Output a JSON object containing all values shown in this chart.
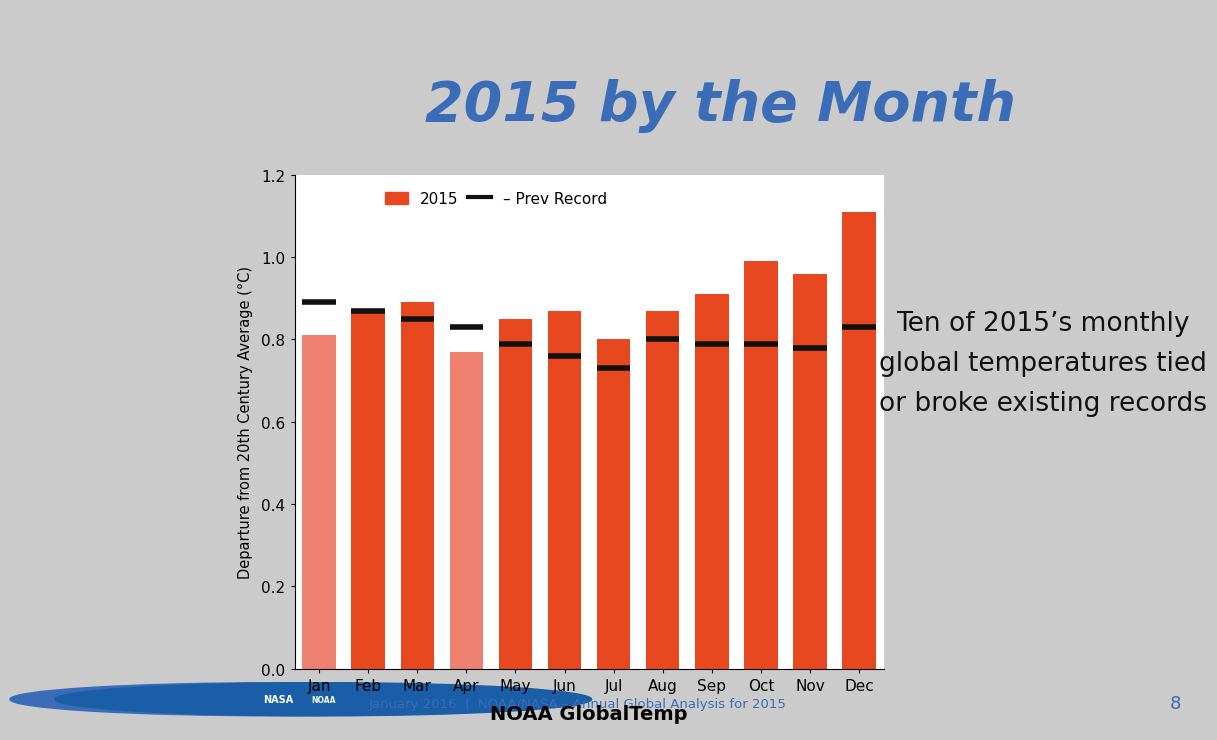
{
  "months": [
    "Jan",
    "Feb",
    "Mar",
    "Apr",
    "May",
    "Jun",
    "Jul",
    "Aug",
    "Sep",
    "Oct",
    "Nov",
    "Dec"
  ],
  "values_2015": [
    0.81,
    0.87,
    0.89,
    0.77,
    0.85,
    0.87,
    0.8,
    0.87,
    0.91,
    0.99,
    0.96,
    1.11
  ],
  "prev_records": [
    0.89,
    0.87,
    0.85,
    0.83,
    0.79,
    0.76,
    0.73,
    0.8,
    0.79,
    0.79,
    0.78,
    0.83
  ],
  "bar_colors": [
    "#F08070",
    "#E84820",
    "#E84820",
    "#F08070",
    "#E84820",
    "#E84820",
    "#E84820",
    "#E84820",
    "#E84820",
    "#E84820",
    "#E84820",
    "#E84820"
  ],
  "record_color": "#111111",
  "bar_color_main": "#E84820",
  "bar_color_light": "#F08070",
  "title": "2015 by the Month",
  "title_color": "#3B6CB7",
  "header_bg": "#3B6CB7",
  "header_stripe_bg": "#7DA6D8",
  "title_area_bg": "#CBCBCB",
  "chart_bg": "#FFFFFF",
  "right_panel_bg": "#DCDCDC",
  "ylabel": "Departure from 20th Century Average (°C)",
  "xlabel": "NOAA GlobalTemp",
  "ylim": [
    0.0,
    1.2
  ],
  "yticks": [
    0.0,
    0.2,
    0.4,
    0.6,
    0.8,
    1.0,
    1.2
  ],
  "annotation_text": "Ten of 2015’s monthly\nglobal temperatures tied\nor broke existing records",
  "annotation_color": "#111111",
  "footer_text": "January 2016  |  NOAA/NASA – Annual Global Analysis for 2015",
  "footer_page": "8",
  "footer_color": "#3B6CB7"
}
